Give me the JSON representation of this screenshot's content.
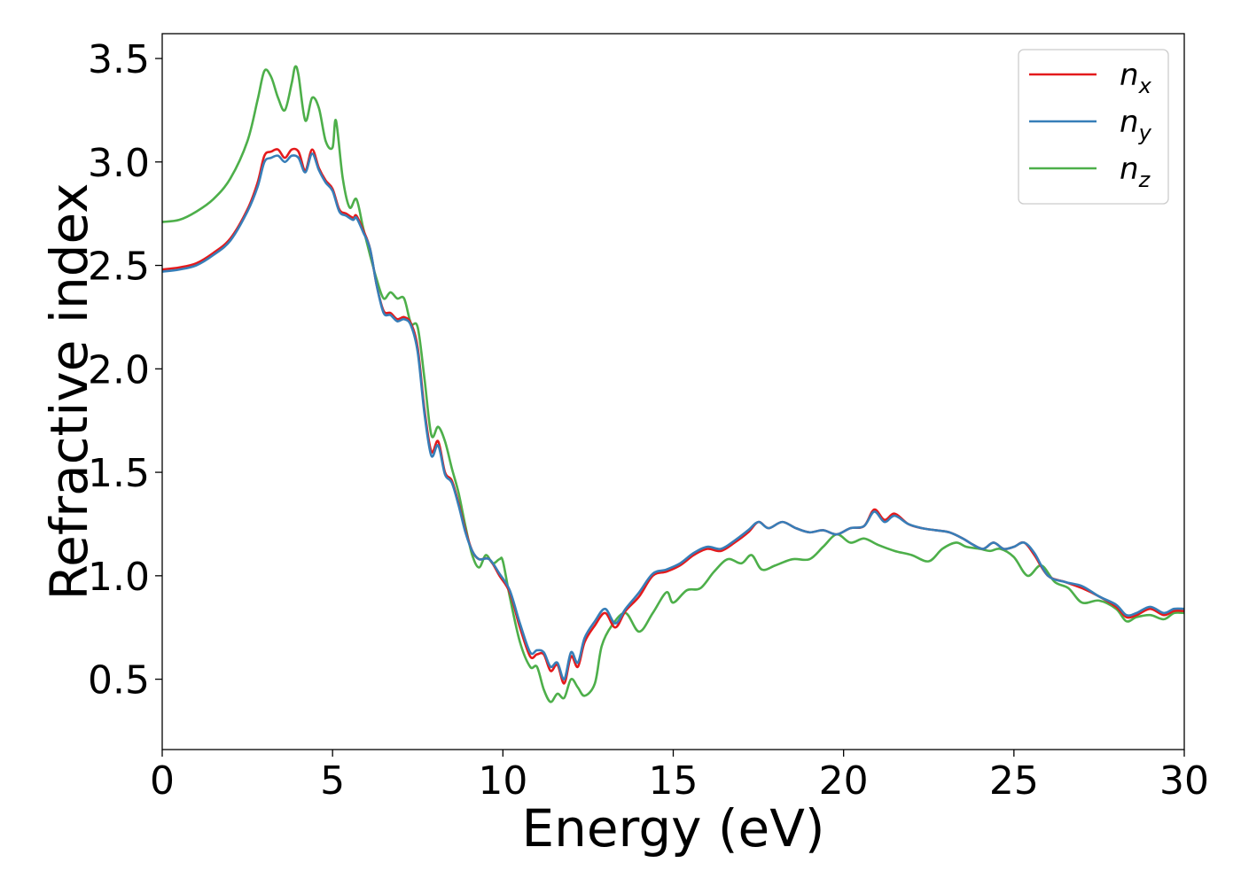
{
  "chart_data": {
    "type": "line",
    "xlabel": "Energy (eV)",
    "ylabel": "Refractive index",
    "xlim": [
      0,
      30
    ],
    "ylim": [
      0.16,
      3.62
    ],
    "xticks": [
      0,
      5,
      10,
      15,
      20,
      25,
      30
    ],
    "yticks": [
      0.5,
      1.0,
      1.5,
      2.0,
      2.5,
      3.0,
      3.5
    ],
    "xtick_labels": [
      "0",
      "5",
      "10",
      "15",
      "20",
      "25",
      "30"
    ],
    "ytick_labels": [
      "0.5",
      "1.0",
      "1.5",
      "2.0",
      "2.5",
      "3.0",
      "3.5"
    ],
    "grid": false,
    "legend_position": "top-right",
    "series": [
      {
        "name": "n_x",
        "label_base": "n",
        "label_sub": "x",
        "color": "#e41a1c",
        "points": [
          [
            0,
            2.48
          ],
          [
            0.5,
            2.49
          ],
          [
            1.0,
            2.51
          ],
          [
            1.5,
            2.56
          ],
          [
            2.0,
            2.63
          ],
          [
            2.5,
            2.77
          ],
          [
            2.8,
            2.9
          ],
          [
            3.0,
            3.03
          ],
          [
            3.2,
            3.05
          ],
          [
            3.4,
            3.06
          ],
          [
            3.6,
            3.02
          ],
          [
            3.8,
            3.06
          ],
          [
            4.0,
            3.05
          ],
          [
            4.2,
            2.96
          ],
          [
            4.4,
            3.06
          ],
          [
            4.6,
            2.97
          ],
          [
            4.8,
            2.91
          ],
          [
            5.0,
            2.87
          ],
          [
            5.2,
            2.77
          ],
          [
            5.4,
            2.75
          ],
          [
            5.6,
            2.73
          ],
          [
            5.7,
            2.74
          ],
          [
            5.9,
            2.67
          ],
          [
            6.1,
            2.58
          ],
          [
            6.3,
            2.4
          ],
          [
            6.5,
            2.28
          ],
          [
            6.7,
            2.27
          ],
          [
            6.9,
            2.24
          ],
          [
            7.1,
            2.25
          ],
          [
            7.3,
            2.22
          ],
          [
            7.5,
            2.1
          ],
          [
            7.7,
            1.8
          ],
          [
            7.9,
            1.6
          ],
          [
            8.1,
            1.65
          ],
          [
            8.3,
            1.5
          ],
          [
            8.5,
            1.46
          ],
          [
            8.7,
            1.35
          ],
          [
            8.9,
            1.22
          ],
          [
            9.1,
            1.12
          ],
          [
            9.3,
            1.08
          ],
          [
            9.6,
            1.08
          ],
          [
            9.9,
            1.0
          ],
          [
            10.2,
            0.92
          ],
          [
            10.5,
            0.75
          ],
          [
            10.8,
            0.61
          ],
          [
            11.0,
            0.62
          ],
          [
            11.2,
            0.62
          ],
          [
            11.4,
            0.54
          ],
          [
            11.6,
            0.57
          ],
          [
            11.8,
            0.48
          ],
          [
            12.0,
            0.61
          ],
          [
            12.2,
            0.56
          ],
          [
            12.4,
            0.68
          ],
          [
            12.7,
            0.76
          ],
          [
            13.0,
            0.82
          ],
          [
            13.3,
            0.75
          ],
          [
            13.6,
            0.83
          ],
          [
            14.0,
            0.9
          ],
          [
            14.4,
            1.0
          ],
          [
            14.8,
            1.02
          ],
          [
            15.2,
            1.05
          ],
          [
            15.6,
            1.1
          ],
          [
            16.0,
            1.13
          ],
          [
            16.4,
            1.12
          ],
          [
            16.8,
            1.16
          ],
          [
            17.2,
            1.21
          ],
          [
            17.5,
            1.26
          ],
          [
            17.8,
            1.23
          ],
          [
            18.2,
            1.26
          ],
          [
            18.6,
            1.23
          ],
          [
            19.0,
            1.21
          ],
          [
            19.4,
            1.22
          ],
          [
            19.8,
            1.2
          ],
          [
            20.2,
            1.23
          ],
          [
            20.6,
            1.24
          ],
          [
            20.9,
            1.32
          ],
          [
            21.2,
            1.27
          ],
          [
            21.5,
            1.3
          ],
          [
            21.9,
            1.25
          ],
          [
            22.3,
            1.23
          ],
          [
            22.7,
            1.22
          ],
          [
            23.1,
            1.21
          ],
          [
            23.5,
            1.18
          ],
          [
            23.8,
            1.15
          ],
          [
            24.1,
            1.13
          ],
          [
            24.4,
            1.16
          ],
          [
            24.7,
            1.13
          ],
          [
            25.0,
            1.14
          ],
          [
            25.3,
            1.16
          ],
          [
            25.6,
            1.1
          ],
          [
            26.0,
            1.0
          ],
          [
            26.5,
            0.97
          ],
          [
            27.0,
            0.94
          ],
          [
            27.5,
            0.9
          ],
          [
            28.0,
            0.85
          ],
          [
            28.3,
            0.8
          ],
          [
            28.6,
            0.81
          ],
          [
            29.0,
            0.84
          ],
          [
            29.4,
            0.81
          ],
          [
            29.7,
            0.83
          ],
          [
            30.0,
            0.83
          ]
        ]
      },
      {
        "name": "n_y",
        "label_base": "n",
        "label_sub": "y",
        "color": "#377eb8",
        "points": [
          [
            0,
            2.47
          ],
          [
            0.5,
            2.48
          ],
          [
            1.0,
            2.5
          ],
          [
            1.5,
            2.55
          ],
          [
            2.0,
            2.62
          ],
          [
            2.5,
            2.76
          ],
          [
            2.8,
            2.88
          ],
          [
            3.0,
            3.0
          ],
          [
            3.2,
            3.02
          ],
          [
            3.4,
            3.03
          ],
          [
            3.6,
            3.0
          ],
          [
            3.8,
            3.03
          ],
          [
            4.0,
            3.02
          ],
          [
            4.2,
            2.95
          ],
          [
            4.4,
            3.04
          ],
          [
            4.6,
            2.96
          ],
          [
            4.8,
            2.9
          ],
          [
            5.0,
            2.86
          ],
          [
            5.2,
            2.76
          ],
          [
            5.4,
            2.74
          ],
          [
            5.6,
            2.72
          ],
          [
            5.7,
            2.73
          ],
          [
            5.9,
            2.66
          ],
          [
            6.1,
            2.58
          ],
          [
            6.3,
            2.4
          ],
          [
            6.5,
            2.27
          ],
          [
            6.7,
            2.26
          ],
          [
            6.9,
            2.23
          ],
          [
            7.1,
            2.24
          ],
          [
            7.3,
            2.21
          ],
          [
            7.5,
            2.08
          ],
          [
            7.7,
            1.78
          ],
          [
            7.9,
            1.58
          ],
          [
            8.1,
            1.63
          ],
          [
            8.3,
            1.49
          ],
          [
            8.5,
            1.45
          ],
          [
            8.7,
            1.34
          ],
          [
            8.9,
            1.21
          ],
          [
            9.1,
            1.12
          ],
          [
            9.3,
            1.08
          ],
          [
            9.6,
            1.08
          ],
          [
            9.9,
            1.01
          ],
          [
            10.2,
            0.93
          ],
          [
            10.5,
            0.77
          ],
          [
            10.8,
            0.63
          ],
          [
            11.0,
            0.64
          ],
          [
            11.2,
            0.63
          ],
          [
            11.4,
            0.56
          ],
          [
            11.6,
            0.58
          ],
          [
            11.8,
            0.5
          ],
          [
            12.0,
            0.63
          ],
          [
            12.2,
            0.58
          ],
          [
            12.4,
            0.7
          ],
          [
            12.7,
            0.78
          ],
          [
            13.0,
            0.84
          ],
          [
            13.3,
            0.77
          ],
          [
            13.6,
            0.84
          ],
          [
            14.0,
            0.92
          ],
          [
            14.4,
            1.01
          ],
          [
            14.8,
            1.03
          ],
          [
            15.2,
            1.06
          ],
          [
            15.6,
            1.11
          ],
          [
            16.0,
            1.14
          ],
          [
            16.4,
            1.13
          ],
          [
            16.8,
            1.17
          ],
          [
            17.2,
            1.22
          ],
          [
            17.5,
            1.26
          ],
          [
            17.8,
            1.23
          ],
          [
            18.2,
            1.26
          ],
          [
            18.6,
            1.23
          ],
          [
            19.0,
            1.21
          ],
          [
            19.4,
            1.22
          ],
          [
            19.8,
            1.2
          ],
          [
            20.2,
            1.23
          ],
          [
            20.6,
            1.24
          ],
          [
            20.9,
            1.31
          ],
          [
            21.2,
            1.26
          ],
          [
            21.5,
            1.29
          ],
          [
            21.9,
            1.25
          ],
          [
            22.3,
            1.23
          ],
          [
            22.7,
            1.22
          ],
          [
            23.1,
            1.21
          ],
          [
            23.5,
            1.18
          ],
          [
            23.8,
            1.15
          ],
          [
            24.1,
            1.13
          ],
          [
            24.4,
            1.16
          ],
          [
            24.7,
            1.13
          ],
          [
            25.0,
            1.14
          ],
          [
            25.3,
            1.16
          ],
          [
            25.6,
            1.11
          ],
          [
            26.0,
            1.0
          ],
          [
            26.5,
            0.97
          ],
          [
            27.0,
            0.95
          ],
          [
            27.5,
            0.9
          ],
          [
            28.0,
            0.86
          ],
          [
            28.3,
            0.81
          ],
          [
            28.6,
            0.82
          ],
          [
            29.0,
            0.85
          ],
          [
            29.4,
            0.82
          ],
          [
            29.7,
            0.84
          ],
          [
            30.0,
            0.84
          ]
        ]
      },
      {
        "name": "n_z",
        "label_base": "n",
        "label_sub": "z",
        "color": "#4daf4a",
        "points": [
          [
            0,
            2.71
          ],
          [
            0.5,
            2.72
          ],
          [
            1.0,
            2.76
          ],
          [
            1.5,
            2.82
          ],
          [
            2.0,
            2.92
          ],
          [
            2.5,
            3.1
          ],
          [
            2.8,
            3.3
          ],
          [
            3.0,
            3.44
          ],
          [
            3.2,
            3.41
          ],
          [
            3.4,
            3.31
          ],
          [
            3.6,
            3.25
          ],
          [
            3.8,
            3.38
          ],
          [
            3.9,
            3.46
          ],
          [
            4.0,
            3.42
          ],
          [
            4.2,
            3.2
          ],
          [
            4.4,
            3.31
          ],
          [
            4.6,
            3.26
          ],
          [
            4.8,
            3.1
          ],
          [
            5.0,
            3.07
          ],
          [
            5.1,
            3.2
          ],
          [
            5.3,
            2.92
          ],
          [
            5.5,
            2.78
          ],
          [
            5.7,
            2.82
          ],
          [
            5.9,
            2.68
          ],
          [
            6.1,
            2.55
          ],
          [
            6.3,
            2.43
          ],
          [
            6.5,
            2.34
          ],
          [
            6.7,
            2.37
          ],
          [
            6.9,
            2.34
          ],
          [
            7.1,
            2.34
          ],
          [
            7.3,
            2.22
          ],
          [
            7.5,
            2.2
          ],
          [
            7.7,
            1.95
          ],
          [
            7.9,
            1.68
          ],
          [
            8.1,
            1.72
          ],
          [
            8.3,
            1.65
          ],
          [
            8.5,
            1.52
          ],
          [
            8.7,
            1.4
          ],
          [
            8.9,
            1.24
          ],
          [
            9.1,
            1.1
          ],
          [
            9.3,
            1.04
          ],
          [
            9.5,
            1.1
          ],
          [
            9.7,
            1.06
          ],
          [
            9.9,
            1.08
          ],
          [
            10.0,
            1.07
          ],
          [
            10.2,
            0.9
          ],
          [
            10.5,
            0.68
          ],
          [
            10.8,
            0.56
          ],
          [
            11.0,
            0.56
          ],
          [
            11.2,
            0.45
          ],
          [
            11.4,
            0.39
          ],
          [
            11.6,
            0.43
          ],
          [
            11.8,
            0.41
          ],
          [
            12.0,
            0.5
          ],
          [
            12.2,
            0.46
          ],
          [
            12.4,
            0.42
          ],
          [
            12.7,
            0.48
          ],
          [
            12.9,
            0.66
          ],
          [
            13.2,
            0.76
          ],
          [
            13.6,
            0.82
          ],
          [
            14.0,
            0.73
          ],
          [
            14.4,
            0.82
          ],
          [
            14.8,
            0.92
          ],
          [
            15.0,
            0.87
          ],
          [
            15.4,
            0.93
          ],
          [
            15.8,
            0.94
          ],
          [
            16.2,
            1.02
          ],
          [
            16.6,
            1.08
          ],
          [
            17.0,
            1.06
          ],
          [
            17.3,
            1.1
          ],
          [
            17.6,
            1.03
          ],
          [
            18.0,
            1.05
          ],
          [
            18.5,
            1.08
          ],
          [
            19.0,
            1.08
          ],
          [
            19.4,
            1.14
          ],
          [
            19.8,
            1.2
          ],
          [
            20.2,
            1.16
          ],
          [
            20.6,
            1.18
          ],
          [
            21.0,
            1.15
          ],
          [
            21.5,
            1.12
          ],
          [
            22.0,
            1.1
          ],
          [
            22.5,
            1.07
          ],
          [
            22.9,
            1.13
          ],
          [
            23.3,
            1.16
          ],
          [
            23.6,
            1.14
          ],
          [
            24.0,
            1.13
          ],
          [
            24.3,
            1.12
          ],
          [
            24.6,
            1.13
          ],
          [
            25.0,
            1.09
          ],
          [
            25.4,
            1.0
          ],
          [
            25.8,
            1.05
          ],
          [
            26.2,
            0.97
          ],
          [
            26.6,
            0.94
          ],
          [
            27.0,
            0.87
          ],
          [
            27.5,
            0.88
          ],
          [
            28.0,
            0.84
          ],
          [
            28.3,
            0.78
          ],
          [
            28.6,
            0.8
          ],
          [
            29.0,
            0.81
          ],
          [
            29.4,
            0.79
          ],
          [
            29.7,
            0.82
          ],
          [
            30.0,
            0.82
          ]
        ]
      }
    ]
  }
}
